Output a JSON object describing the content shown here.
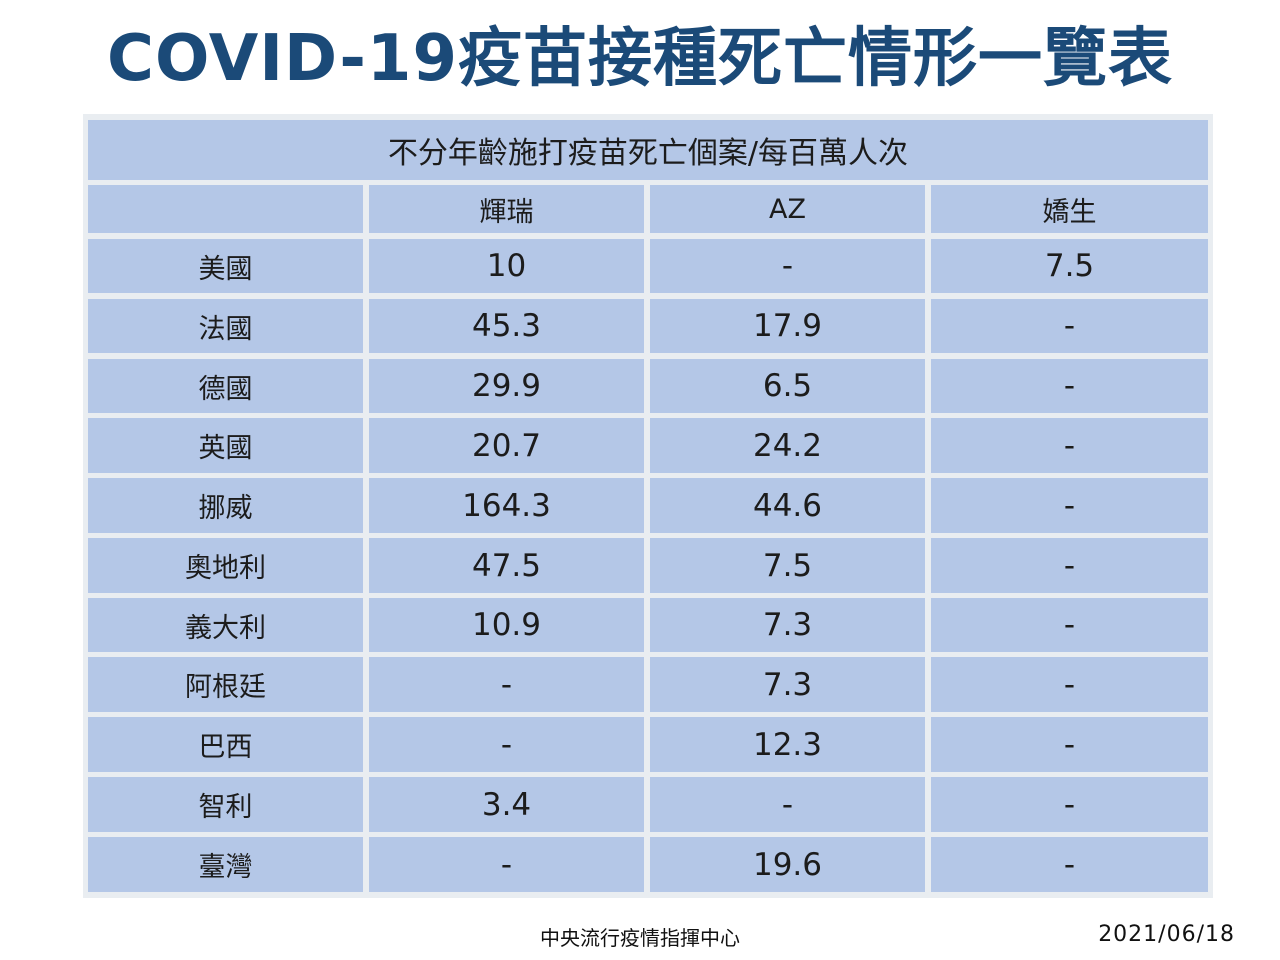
{
  "page_title": "COVID-19疫苗接種死亡情形一覽表",
  "table": {
    "caption": "不分年齡施打疫苗死亡個案/每百萬人次",
    "corner": "",
    "columns": [
      "輝瑞",
      "AZ",
      "嬌生"
    ],
    "rows": [
      {
        "country": "美國",
        "values": [
          "10",
          "-",
          "7.5"
        ]
      },
      {
        "country": "法國",
        "values": [
          "45.3",
          "17.9",
          "-"
        ]
      },
      {
        "country": "德國",
        "values": [
          "29.9",
          "6.5",
          "-"
        ]
      },
      {
        "country": "英國",
        "values": [
          "20.7",
          "24.2",
          "-"
        ]
      },
      {
        "country": "挪威",
        "values": [
          "164.3",
          "44.6",
          "-"
        ]
      },
      {
        "country": "奧地利",
        "values": [
          "47.5",
          "7.5",
          "-"
        ]
      },
      {
        "country": "義大利",
        "values": [
          "10.9",
          "7.3",
          "-"
        ]
      },
      {
        "country": "阿根廷",
        "values": [
          "-",
          "7.3",
          "-"
        ]
      },
      {
        "country": "巴西",
        "values": [
          "-",
          "12.3",
          "-"
        ]
      },
      {
        "country": "智利",
        "values": [
          "3.4",
          "-",
          "-"
        ]
      },
      {
        "country": "臺灣",
        "values": [
          "-",
          "19.6",
          "-"
        ]
      }
    ]
  },
  "footer": {
    "organization": "中央流行疫情指揮中心",
    "date": "2021/06/18"
  }
}
